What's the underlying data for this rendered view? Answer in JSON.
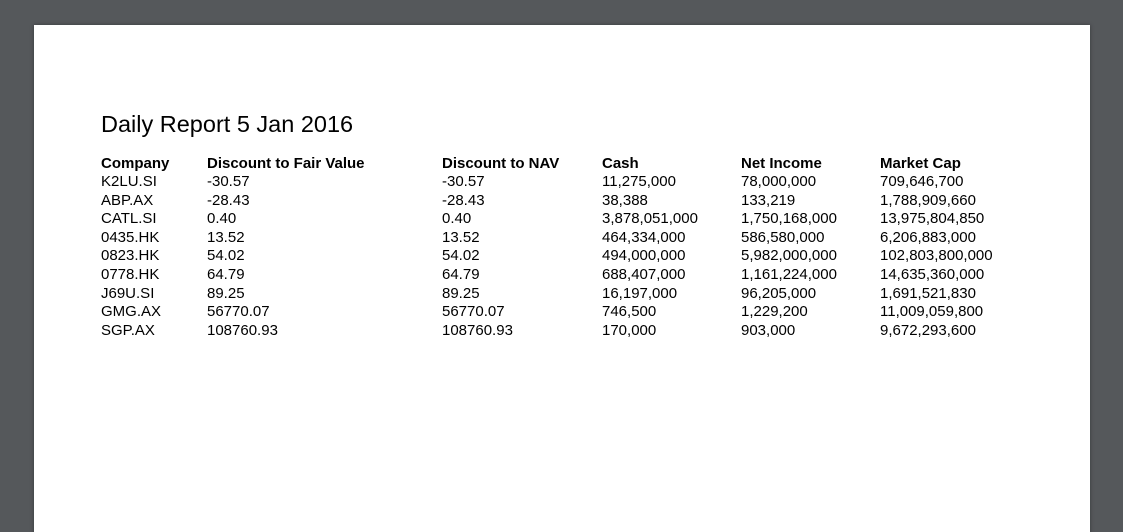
{
  "report": {
    "title": "Daily Report 5 Jan 2016",
    "columns": [
      "Company",
      "Discount to Fair Value",
      "Discount to NAV",
      "Cash",
      "Net Income",
      "Market Cap"
    ],
    "rows": [
      [
        "K2LU.SI",
        "-30.57",
        "-30.57",
        "11,275,000",
        "78,000,000",
        "709,646,700"
      ],
      [
        "ABP.AX",
        "-28.43",
        "-28.43",
        "38,388",
        "133,219",
        "1,788,909,660"
      ],
      [
        "CATL.SI",
        "0.40",
        "0.40",
        "3,878,051,000",
        "1,750,168,000",
        "13,975,804,850"
      ],
      [
        "0435.HK",
        "13.52",
        "13.52",
        "464,334,000",
        "586,580,000",
        "6,206,883,000"
      ],
      [
        "0823.HK",
        "54.02",
        "54.02",
        "494,000,000",
        "5,982,000,000",
        "102,803,800,000"
      ],
      [
        "0778.HK",
        "64.79",
        "64.79",
        "688,407,000",
        "1,161,224,000",
        "14,635,360,000"
      ],
      [
        "J69U.SI",
        "89.25",
        "89.25",
        "16,197,000",
        "96,205,000",
        "1,691,521,830"
      ],
      [
        "GMG.AX",
        "56770.07",
        "56770.07",
        "746,500",
        "1,229,200",
        "11,009,059,800"
      ],
      [
        "SGP.AX",
        "108760.93",
        "108760.93",
        "170,000",
        "903,000",
        "9,672,293,600"
      ]
    ]
  },
  "colors": {
    "viewer_background": "#55585b",
    "page_background": "#ffffff",
    "text": "#000000"
  }
}
